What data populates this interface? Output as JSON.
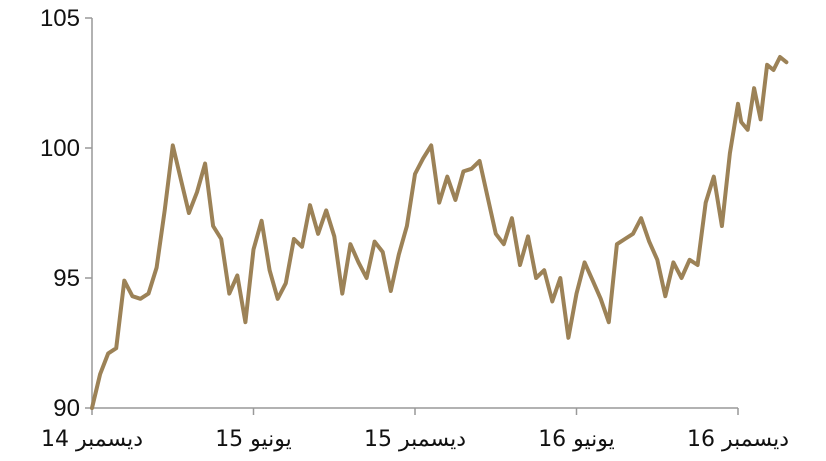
{
  "chart_data": {
    "type": "line",
    "title": "",
    "xlabel": "",
    "ylabel": "",
    "ylim": [
      90,
      105
    ],
    "y_ticks": [
      90,
      95,
      100,
      105
    ],
    "x_ticks": [
      "ديسمبر 14",
      "يونيو 15",
      "ديسمبر 15",
      "يونيو 16",
      "ديسمبر 16"
    ],
    "grid": false,
    "legend": "none",
    "line_color": "#9c8257",
    "axis_color": "#999999",
    "series": [
      {
        "x": [
          0,
          0.05,
          0.1,
          0.15,
          0.2,
          0.25,
          0.3,
          0.35,
          0.4,
          0.45,
          0.5,
          0.55,
          0.6,
          0.65,
          0.7,
          0.75,
          0.8,
          0.85,
          0.9,
          0.95,
          1.0,
          1.05,
          1.1,
          1.15,
          1.2,
          1.25,
          1.3,
          1.35,
          1.4,
          1.45,
          1.5,
          1.55,
          1.6,
          1.65,
          1.7,
          1.75,
          1.8,
          1.85,
          1.9,
          1.95,
          2.0,
          2.05,
          2.1,
          2.15,
          2.2,
          2.25,
          2.3,
          2.35,
          2.4,
          2.45,
          2.5,
          2.55,
          2.6,
          2.65,
          2.7,
          2.75,
          2.8,
          2.85,
          2.9,
          2.95,
          3.0,
          3.05,
          3.1,
          3.15,
          3.2,
          3.25,
          3.3,
          3.35,
          3.4,
          3.45,
          3.5,
          3.55,
          3.6,
          3.65,
          3.7,
          3.75,
          3.8,
          3.85,
          3.9,
          3.95,
          4.0,
          4.02
        ],
        "values": [
          90.0,
          91.3,
          92.1,
          92.3,
          94.9,
          94.3,
          94.2,
          94.4,
          95.4,
          97.6,
          100.1,
          98.8,
          97.5,
          98.3,
          99.4,
          97.0,
          96.5,
          94.4,
          95.1,
          93.3,
          96.1,
          97.2,
          95.3,
          94.2,
          94.8,
          96.5,
          96.2,
          97.8,
          96.7,
          97.6,
          96.6,
          94.4,
          96.3,
          95.6,
          95.0,
          96.4,
          96.0,
          94.5,
          95.9,
          97.0,
          99.0,
          99.6,
          100.1,
          97.9,
          98.9,
          98.0,
          99.1,
          99.2,
          99.5,
          98.1,
          96.7,
          96.3,
          97.3,
          95.5,
          96.6,
          95.0,
          95.3,
          94.1,
          95.0,
          92.7,
          94.4,
          95.6,
          94.9,
          94.2,
          93.3,
          96.3,
          96.5,
          96.7,
          97.3,
          96.4,
          95.7,
          94.3,
          95.6,
          95.0,
          95.7,
          95.5,
          97.9,
          98.9,
          97.0,
          99.8,
          101.7,
          101.0
        ]
      },
      {
        "x": [
          4.02,
          4.06,
          4.1,
          4.14,
          4.18,
          4.22,
          4.26,
          4.3
        ],
        "values": [
          101.0,
          100.7,
          102.3,
          101.1,
          103.2,
          103.0,
          103.5,
          103.3
        ]
      }
    ]
  }
}
